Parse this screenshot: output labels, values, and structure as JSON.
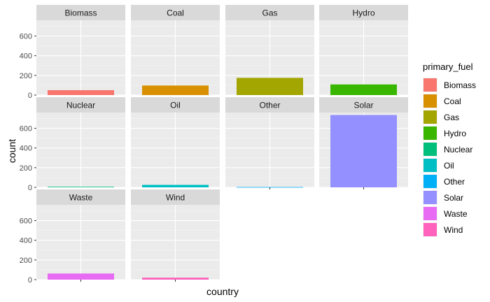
{
  "chart_data": {
    "type": "bar",
    "layout": "facet_wrap",
    "facet_ncol": 4,
    "xlabel": "country",
    "ylabel": "count",
    "y_ticks": [
      0,
      200,
      400,
      600
    ],
    "ylim": [
      0,
      760
    ],
    "x_category": "",
    "legend": {
      "title": "primary_fuel",
      "position": "right"
    },
    "facets": [
      {
        "name": "Biomass",
        "value": 50,
        "color": "#F8766D"
      },
      {
        "name": "Coal",
        "value": 97,
        "color": "#D89000"
      },
      {
        "name": "Gas",
        "value": 175,
        "color": "#A3A500"
      },
      {
        "name": "Hydro",
        "value": 108,
        "color": "#39B600"
      },
      {
        "name": "Nuclear",
        "value": 6,
        "color": "#00BF7D"
      },
      {
        "name": "Oil",
        "value": 25,
        "color": "#00BFC4"
      },
      {
        "name": "Other",
        "value": 3,
        "color": "#00B0F6"
      },
      {
        "name": "Solar",
        "value": 735,
        "color": "#9590FF"
      },
      {
        "name": "Waste",
        "value": 62,
        "color": "#E76BF3"
      },
      {
        "name": "Wind",
        "value": 20,
        "color": "#FF62BC"
      }
    ]
  }
}
